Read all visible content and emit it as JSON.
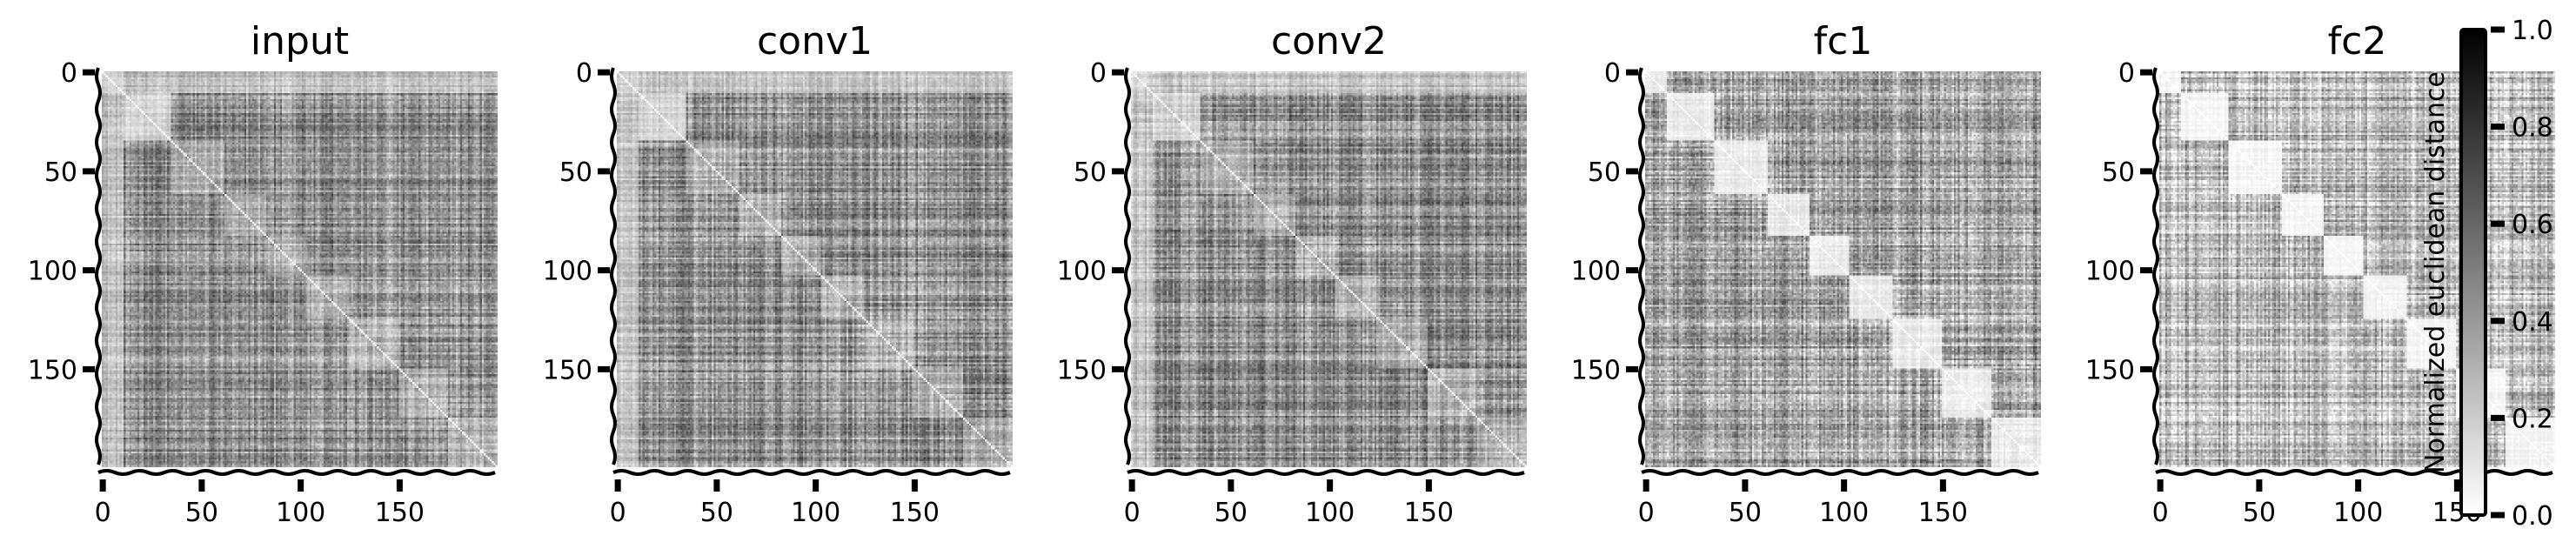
{
  "chart_data": {
    "type": "heatmap",
    "panels": [
      {
        "title": "input",
        "style": "dense"
      },
      {
        "title": "conv1",
        "style": "dense"
      },
      {
        "title": "conv2",
        "style": "dense"
      },
      {
        "title": "fc1",
        "style": "blocky"
      },
      {
        "title": "fc2",
        "style": "blocky_light"
      }
    ],
    "n_points": 200,
    "y_ticks": [
      0,
      50,
      100,
      150
    ],
    "x_ticks": [
      0,
      50,
      100,
      150
    ],
    "xlim": [
      0,
      199
    ],
    "ylim": [
      0,
      199
    ],
    "colormap": "gray_r",
    "value_range": [
      0.0,
      1.0
    ],
    "colorbar": {
      "label": "Normalized euclidean distance",
      "ticks": [
        "0.0",
        "0.2",
        "0.4",
        "0.6",
        "0.8",
        "1.0"
      ]
    },
    "grid": false
  }
}
